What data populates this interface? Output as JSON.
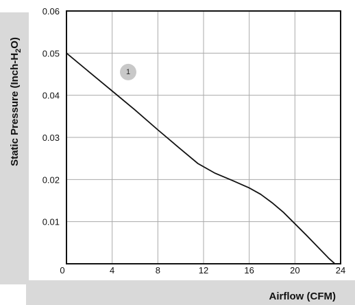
{
  "chart_data": {
    "type": "line",
    "title": "",
    "xlabel": "Airflow (CFM)",
    "ylabel_main": "Static Pressure (Inch-H",
    "ylabel_sub": "2",
    "ylabel_end": "O)",
    "xlim": [
      0,
      24
    ],
    "ylim": [
      0,
      0.06
    ],
    "x_ticks": [
      0,
      4,
      8,
      12,
      16,
      20,
      24
    ],
    "x_tick_labels": [
      "0",
      "4",
      "8",
      "12",
      "16",
      "20",
      "24"
    ],
    "y_ticks": [
      0.01,
      0.02,
      0.03,
      0.04,
      0.05,
      0.06
    ],
    "y_tick_labels": [
      "0.01",
      "0.02",
      "0.03",
      "0.04",
      "0.05",
      "0.06"
    ],
    "grid": true,
    "colors": {
      "panel": "#d9d9d9",
      "plot_bg": "#ffffff",
      "grid": "#aaaaaa",
      "line": "#111111",
      "marker_fill": "#c8c8c8"
    },
    "series": [
      {
        "marker_label": "1",
        "marker_at": {
          "x": 5.4,
          "y": 0.0455
        },
        "points": [
          {
            "x": 0,
            "y": 0.05
          },
          {
            "x": 2,
            "y": 0.0455
          },
          {
            "x": 4,
            "y": 0.041
          },
          {
            "x": 6,
            "y": 0.0365
          },
          {
            "x": 8,
            "y": 0.0318
          },
          {
            "x": 10,
            "y": 0.0272
          },
          {
            "x": 11.5,
            "y": 0.0238
          },
          {
            "x": 13,
            "y": 0.0215
          },
          {
            "x": 14.5,
            "y": 0.0198
          },
          {
            "x": 16,
            "y": 0.018
          },
          {
            "x": 17,
            "y": 0.0165
          },
          {
            "x": 18,
            "y": 0.0145
          },
          {
            "x": 19,
            "y": 0.0122
          },
          {
            "x": 20,
            "y": 0.0095
          },
          {
            "x": 21,
            "y": 0.0068
          },
          {
            "x": 22,
            "y": 0.004
          },
          {
            "x": 23,
            "y": 0.0012
          },
          {
            "x": 23.5,
            "y": 0
          }
        ]
      }
    ]
  }
}
